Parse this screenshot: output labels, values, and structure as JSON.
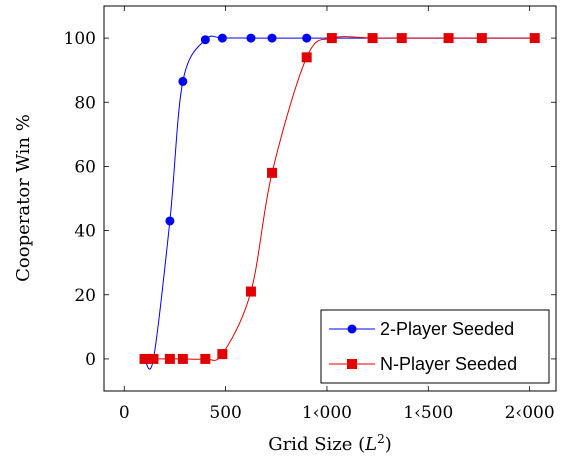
{
  "chart_data": {
    "type": "line",
    "title": "",
    "xlabel": "Grid Size (L²)",
    "xlabel_base": "Grid Size (",
    "xlabel_var": "L",
    "xlabel_exp": "2",
    "xlabel_close": ")",
    "ylabel": "Cooperator Win %",
    "xlim": [
      -100,
      2130
    ],
    "ylim": [
      -10,
      110
    ],
    "xticks": [
      0,
      500,
      1000,
      1500,
      2000
    ],
    "xtick_labels": [
      "0",
      "500",
      "1‹000",
      "1‹500",
      "2‹000"
    ],
    "yticks": [
      0,
      20,
      40,
      60,
      80,
      100
    ],
    "ytick_labels": [
      "0",
      "20",
      "40",
      "60",
      "80",
      "100"
    ],
    "grid": false,
    "legend_position": "bottom-right",
    "series": [
      {
        "name": "2-Player Seeded",
        "color": "#0000ff",
        "marker": "circle",
        "x": [
          100,
          144,
          225,
          289,
          400,
          484,
          625,
          729,
          900,
          1024,
          1225,
          1369,
          1600,
          1764,
          2025
        ],
        "y": [
          0,
          0,
          43,
          86.5,
          99.5,
          100,
          100,
          100,
          100,
          100,
          100,
          100,
          100,
          100,
          100
        ]
      },
      {
        "name": "N-Player Seeded",
        "color": "#e00000",
        "marker": "square",
        "x": [
          100,
          144,
          225,
          289,
          400,
          484,
          625,
          729,
          900,
          1024,
          1225,
          1369,
          1600,
          1764,
          2025
        ],
        "y": [
          0,
          0,
          0,
          0,
          0,
          1.5,
          21,
          58,
          94,
          100,
          100,
          100,
          100,
          100,
          100
        ]
      }
    ]
  }
}
